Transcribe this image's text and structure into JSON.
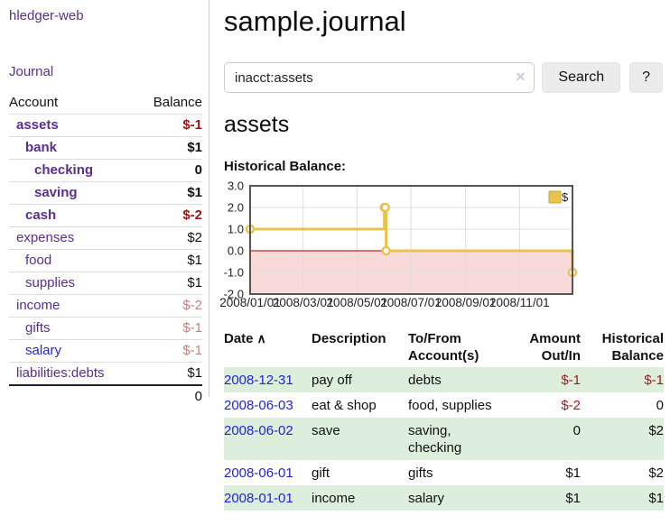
{
  "app": {
    "title": "hledger-web"
  },
  "sidebar": {
    "journal_link": "Journal",
    "accounts": {
      "header_account": "Account",
      "header_balance": "Balance",
      "rows": [
        {
          "name": "assets",
          "depth": 1,
          "bold": true,
          "balance": "$-1",
          "balance_style": "negbold",
          "link_color": "purple"
        },
        {
          "name": "bank",
          "depth": 2,
          "bold": true,
          "balance": "$1",
          "balance_style": "pos",
          "link_color": "purple"
        },
        {
          "name": "checking",
          "depth": 3,
          "bold": true,
          "balance": "0",
          "balance_style": "pos",
          "link_color": "purple"
        },
        {
          "name": "saving",
          "depth": 3,
          "bold": true,
          "balance": "$1",
          "balance_style": "pos",
          "link_color": "purple"
        },
        {
          "name": "cash",
          "depth": 2,
          "bold": true,
          "balance": "$-2",
          "balance_style": "negbold",
          "link_color": "purple"
        },
        {
          "name": "expenses",
          "depth": 1,
          "bold": false,
          "balance": "$2",
          "balance_style": "pos",
          "link_color": "purple"
        },
        {
          "name": "food",
          "depth": 2,
          "bold": false,
          "balance": "$1",
          "balance_style": "pos",
          "link_color": "purple"
        },
        {
          "name": "supplies",
          "depth": 2,
          "bold": false,
          "balance": "$1",
          "balance_style": "pos",
          "link_color": "purple"
        },
        {
          "name": "income",
          "depth": 1,
          "bold": false,
          "balance": "$-2",
          "balance_style": "negrose",
          "link_color": "purple"
        },
        {
          "name": "gifts",
          "depth": 2,
          "bold": false,
          "balance": "$-1",
          "balance_style": "negrose",
          "link_color": "purple"
        },
        {
          "name": "salary",
          "depth": 2,
          "bold": false,
          "balance": "$-1",
          "balance_style": "negrose",
          "link_color": "blue"
        },
        {
          "name": "liabilities:debts",
          "depth": 1,
          "bold": false,
          "balance": "$1",
          "balance_style": "pos",
          "link_color": "purple"
        }
      ],
      "total": "0"
    }
  },
  "header": {
    "title": "sample.journal"
  },
  "search": {
    "value": "inacct:assets",
    "clear_icon_glyph": "✕",
    "button_label": "Search",
    "help_label": "?"
  },
  "account_page": {
    "heading": "assets",
    "chart_label": "Historical Balance:"
  },
  "chart_data": {
    "type": "line",
    "step": true,
    "series": [
      {
        "name": "$",
        "points": [
          {
            "date": "2008-01-01",
            "value": 1.0
          },
          {
            "date": "2008-06-01",
            "value": 2.0
          },
          {
            "date": "2008-06-02",
            "value": 2.0
          },
          {
            "date": "2008-06-03",
            "value": 0.0
          },
          {
            "date": "2008-12-31",
            "value": -1.0
          }
        ]
      }
    ],
    "ylim": [
      -2.0,
      3.0
    ],
    "ytick_values": [
      3,
      2,
      1,
      0,
      -1,
      -2
    ],
    "ytick_labels": [
      "3.0",
      "2.0",
      "1.0",
      "0.0",
      "-1.0",
      "-2.0"
    ],
    "xticks": [
      {
        "label": "2008/01/01",
        "date": "2008-01-01"
      },
      {
        "label": "2008/03/01",
        "date": "2008-03-01"
      },
      {
        "label": "2008/05/01",
        "date": "2008-05-01"
      },
      {
        "label": "2008/07/01",
        "date": "2008-07-01"
      },
      {
        "label": "2008/09/01",
        "date": "2008-09-01"
      },
      {
        "label": "2008/11/01",
        "date": "2008-11-01"
      }
    ],
    "x_range": [
      "2008-01-01",
      "2008-12-31"
    ],
    "legend": {
      "position": "top-right",
      "entries": [
        "$"
      ]
    },
    "grid": true,
    "negative_region_shaded": true,
    "colors": {
      "line": "#e8c44f",
      "legend_border": "#c9a63c",
      "marker_fill": "#ffffff",
      "negative_fill": "#f9dada",
      "zero_line": "#990000",
      "grid": "#dddddd",
      "border": "#555555",
      "tick_text": "#222222"
    }
  },
  "transactions": {
    "headers": {
      "date": "Date",
      "sort_icon_glyph": "∧",
      "description": "Description",
      "accounts_line1": "To/From",
      "accounts_line2": "Account(s)",
      "amount_line1": "Amount",
      "amount_line2": "Out/In",
      "balance_line1": "Historical",
      "balance_line2": "Balance"
    },
    "rows": [
      {
        "date": "2008-12-31",
        "description": "pay off",
        "accounts": "debts",
        "amount": "$-1",
        "amount_negative": true,
        "balance": "$-1",
        "balance_negative": true,
        "highlight": true
      },
      {
        "date": "2008-06-03",
        "description": "eat & shop",
        "accounts": "food, supplies",
        "amount": "$-2",
        "amount_negative": true,
        "balance": "0",
        "balance_negative": false,
        "highlight": false
      },
      {
        "date": "2008-06-02",
        "description": "save",
        "accounts": "saving, checking",
        "amount": "0",
        "amount_negative": false,
        "balance": "$2",
        "balance_negative": false,
        "highlight": true
      },
      {
        "date": "2008-06-01",
        "description": "gift",
        "accounts": "gifts",
        "amount": "$1",
        "amount_negative": false,
        "balance": "$2",
        "balance_negative": false,
        "highlight": false
      },
      {
        "date": "2008-01-01",
        "description": "income",
        "accounts": "salary",
        "amount": "$1",
        "amount_negative": false,
        "balance": "$1",
        "balance_negative": false,
        "highlight": true
      }
    ]
  },
  "colors": {
    "link_purple": "#5b2d90",
    "link_blue": "#2222dd",
    "negative_bold": "#9a1414",
    "negative_muted": "#c28181",
    "row_highlight_green": "#ddeedd"
  }
}
